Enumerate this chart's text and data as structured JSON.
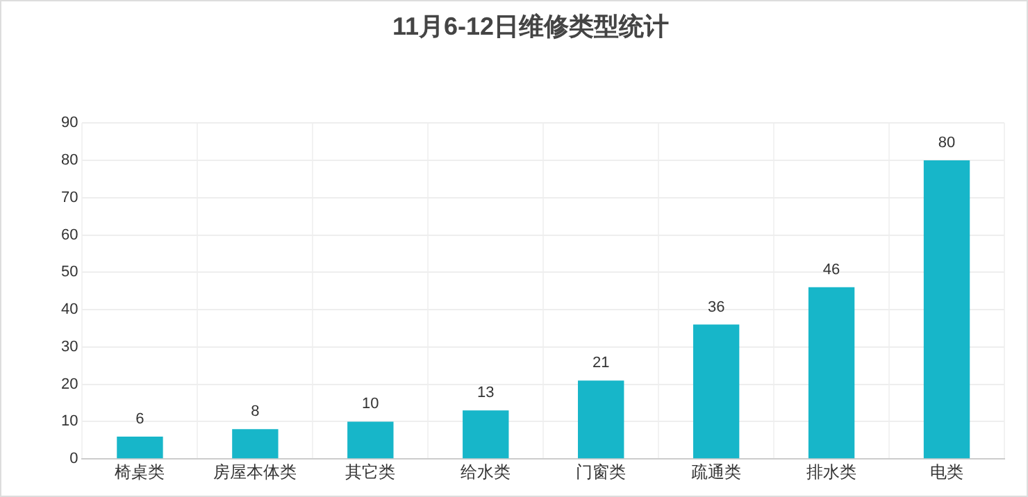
{
  "chart_data": {
    "type": "bar",
    "title": "11月6-12日维修类型统计",
    "categories": [
      "椅桌类",
      "房屋本体类",
      "其它类",
      "给水类",
      "门窗类",
      "疏通类",
      "排水类",
      "电类"
    ],
    "values": [
      6,
      8,
      10,
      13,
      21,
      36,
      46,
      80
    ],
    "color": "#17b6c9",
    "ylim": [
      0,
      90
    ],
    "yticks": [
      0,
      10,
      20,
      30,
      40,
      50,
      60,
      70,
      80,
      90
    ],
    "grid": true,
    "data_labels": true,
    "legend": false
  }
}
